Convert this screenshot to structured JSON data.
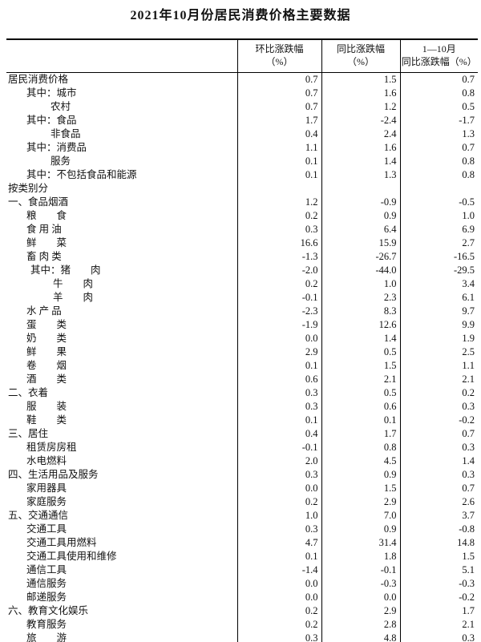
{
  "page": {
    "title": "2021年10月份居民消费价格主要数据"
  },
  "table": {
    "header": {
      "mom": [
        "环比涨跌幅",
        "（%）"
      ],
      "yoy": [
        "同比涨跌幅",
        "（%）"
      ],
      "ytd": [
        "1—10月",
        "同比涨跌幅（%）"
      ]
    },
    "rows": [
      {
        "label": "居民消费价格",
        "indent": 0,
        "mom": "0.7",
        "yoy": "1.5",
        "ytd": "0.7"
      },
      {
        "label": "其中：城市",
        "indent": 1,
        "mom": "0.7",
        "yoy": "1.6",
        "ytd": "0.8"
      },
      {
        "label": "农村",
        "indent": 2,
        "mom": "0.7",
        "yoy": "1.2",
        "ytd": "0.5"
      },
      {
        "label": "其中：食品",
        "indent": 1,
        "mom": "1.7",
        "yoy": "-2.4",
        "ytd": "-1.7"
      },
      {
        "label": "非食品",
        "indent": 2,
        "mom": "0.4",
        "yoy": "2.4",
        "ytd": "1.3"
      },
      {
        "label": "其中：消费品",
        "indent": 1,
        "mom": "1.1",
        "yoy": "1.6",
        "ytd": "0.7"
      },
      {
        "label": "服务",
        "indent": 2,
        "mom": "0.1",
        "yoy": "1.4",
        "ytd": "0.8"
      },
      {
        "label": "其中：不包括食品和能源",
        "indent": 1,
        "mom": "0.1",
        "yoy": "1.3",
        "ytd": "0.8"
      },
      {
        "label": "按类别分",
        "indent": 0,
        "mom": "",
        "yoy": "",
        "ytd": ""
      },
      {
        "label": "一、食品烟酒",
        "indent": 0,
        "mom": "1.2",
        "yoy": "-0.9",
        "ytd": "-0.5"
      },
      {
        "label": "粮　　食",
        "indent": 1,
        "mom": "0.2",
        "yoy": "0.9",
        "ytd": "1.0"
      },
      {
        "label": "食 用 油",
        "indent": 1,
        "mom": "0.3",
        "yoy": "6.4",
        "ytd": "6.9"
      },
      {
        "label": "鲜　　菜",
        "indent": 1,
        "mom": "16.6",
        "yoy": "15.9",
        "ytd": "2.7"
      },
      {
        "label": "畜 肉 类",
        "indent": 1,
        "mom": "-1.3",
        "yoy": "-26.7",
        "ytd": "-16.5"
      },
      {
        "label": "其中：猪　　肉",
        "indent": 3,
        "mom": "-2.0",
        "yoy": "-44.0",
        "ytd": "-29.5"
      },
      {
        "label": "牛　　肉",
        "indent": 4,
        "mom": "0.2",
        "yoy": "1.0",
        "ytd": "3.4"
      },
      {
        "label": "羊　　肉",
        "indent": 4,
        "mom": "-0.1",
        "yoy": "2.3",
        "ytd": "6.1"
      },
      {
        "label": "水 产 品",
        "indent": 1,
        "mom": "-2.3",
        "yoy": "8.3",
        "ytd": "9.7"
      },
      {
        "label": "蛋　　类",
        "indent": 1,
        "mom": "-1.9",
        "yoy": "12.6",
        "ytd": "9.9"
      },
      {
        "label": "奶　　类",
        "indent": 1,
        "mom": "0.0",
        "yoy": "1.4",
        "ytd": "1.9"
      },
      {
        "label": "鲜　　果",
        "indent": 1,
        "mom": "2.9",
        "yoy": "0.5",
        "ytd": "2.5"
      },
      {
        "label": "卷　　烟",
        "indent": 1,
        "mom": "0.1",
        "yoy": "1.5",
        "ytd": "1.1"
      },
      {
        "label": "酒　　类",
        "indent": 1,
        "mom": "0.6",
        "yoy": "2.1",
        "ytd": "2.1"
      },
      {
        "label": "二、衣着",
        "indent": 0,
        "mom": "0.3",
        "yoy": "0.5",
        "ytd": "0.2"
      },
      {
        "label": "服　　装",
        "indent": 1,
        "mom": "0.3",
        "yoy": "0.6",
        "ytd": "0.3"
      },
      {
        "label": "鞋　　类",
        "indent": 1,
        "mom": "0.1",
        "yoy": "0.1",
        "ytd": "-0.2"
      },
      {
        "label": "三、居住",
        "indent": 0,
        "mom": "0.4",
        "yoy": "1.7",
        "ytd": "0.7"
      },
      {
        "label": "租赁房房租",
        "indent": 1,
        "mom": "-0.1",
        "yoy": "0.8",
        "ytd": "0.3"
      },
      {
        "label": "水电燃料",
        "indent": 1,
        "mom": "2.0",
        "yoy": "4.5",
        "ytd": "1.4"
      },
      {
        "label": "四、生活用品及服务",
        "indent": 0,
        "mom": "0.3",
        "yoy": "0.9",
        "ytd": "0.3"
      },
      {
        "label": "家用器具",
        "indent": 1,
        "mom": "0.0",
        "yoy": "1.5",
        "ytd": "0.7"
      },
      {
        "label": "家庭服务",
        "indent": 1,
        "mom": "0.2",
        "yoy": "2.9",
        "ytd": "2.6"
      },
      {
        "label": "五、交通通信",
        "indent": 0,
        "mom": "1.0",
        "yoy": "7.0",
        "ytd": "3.7"
      },
      {
        "label": "交通工具",
        "indent": 1,
        "mom": "0.3",
        "yoy": "0.9",
        "ytd": "-0.8"
      },
      {
        "label": "交通工具用燃料",
        "indent": 1,
        "mom": "4.7",
        "yoy": "31.4",
        "ytd": "14.8"
      },
      {
        "label": "交通工具使用和维修",
        "indent": 1,
        "mom": "0.1",
        "yoy": "1.8",
        "ytd": "1.5"
      },
      {
        "label": "通信工具",
        "indent": 1,
        "mom": "-1.4",
        "yoy": "-0.1",
        "ytd": "5.1"
      },
      {
        "label": "通信服务",
        "indent": 1,
        "mom": "0.0",
        "yoy": "-0.3",
        "ytd": "-0.3"
      },
      {
        "label": "邮递服务",
        "indent": 1,
        "mom": "0.0",
        "yoy": "0.0",
        "ytd": "-0.2"
      },
      {
        "label": "六、教育文化娱乐",
        "indent": 0,
        "mom": "0.2",
        "yoy": "2.9",
        "ytd": "1.7"
      },
      {
        "label": "教育服务",
        "indent": 1,
        "mom": "0.2",
        "yoy": "2.8",
        "ytd": "2.1"
      },
      {
        "label": "旅　　游",
        "indent": 1,
        "mom": "0.3",
        "yoy": "4.8",
        "ytd": "0.3"
      }
    ]
  }
}
